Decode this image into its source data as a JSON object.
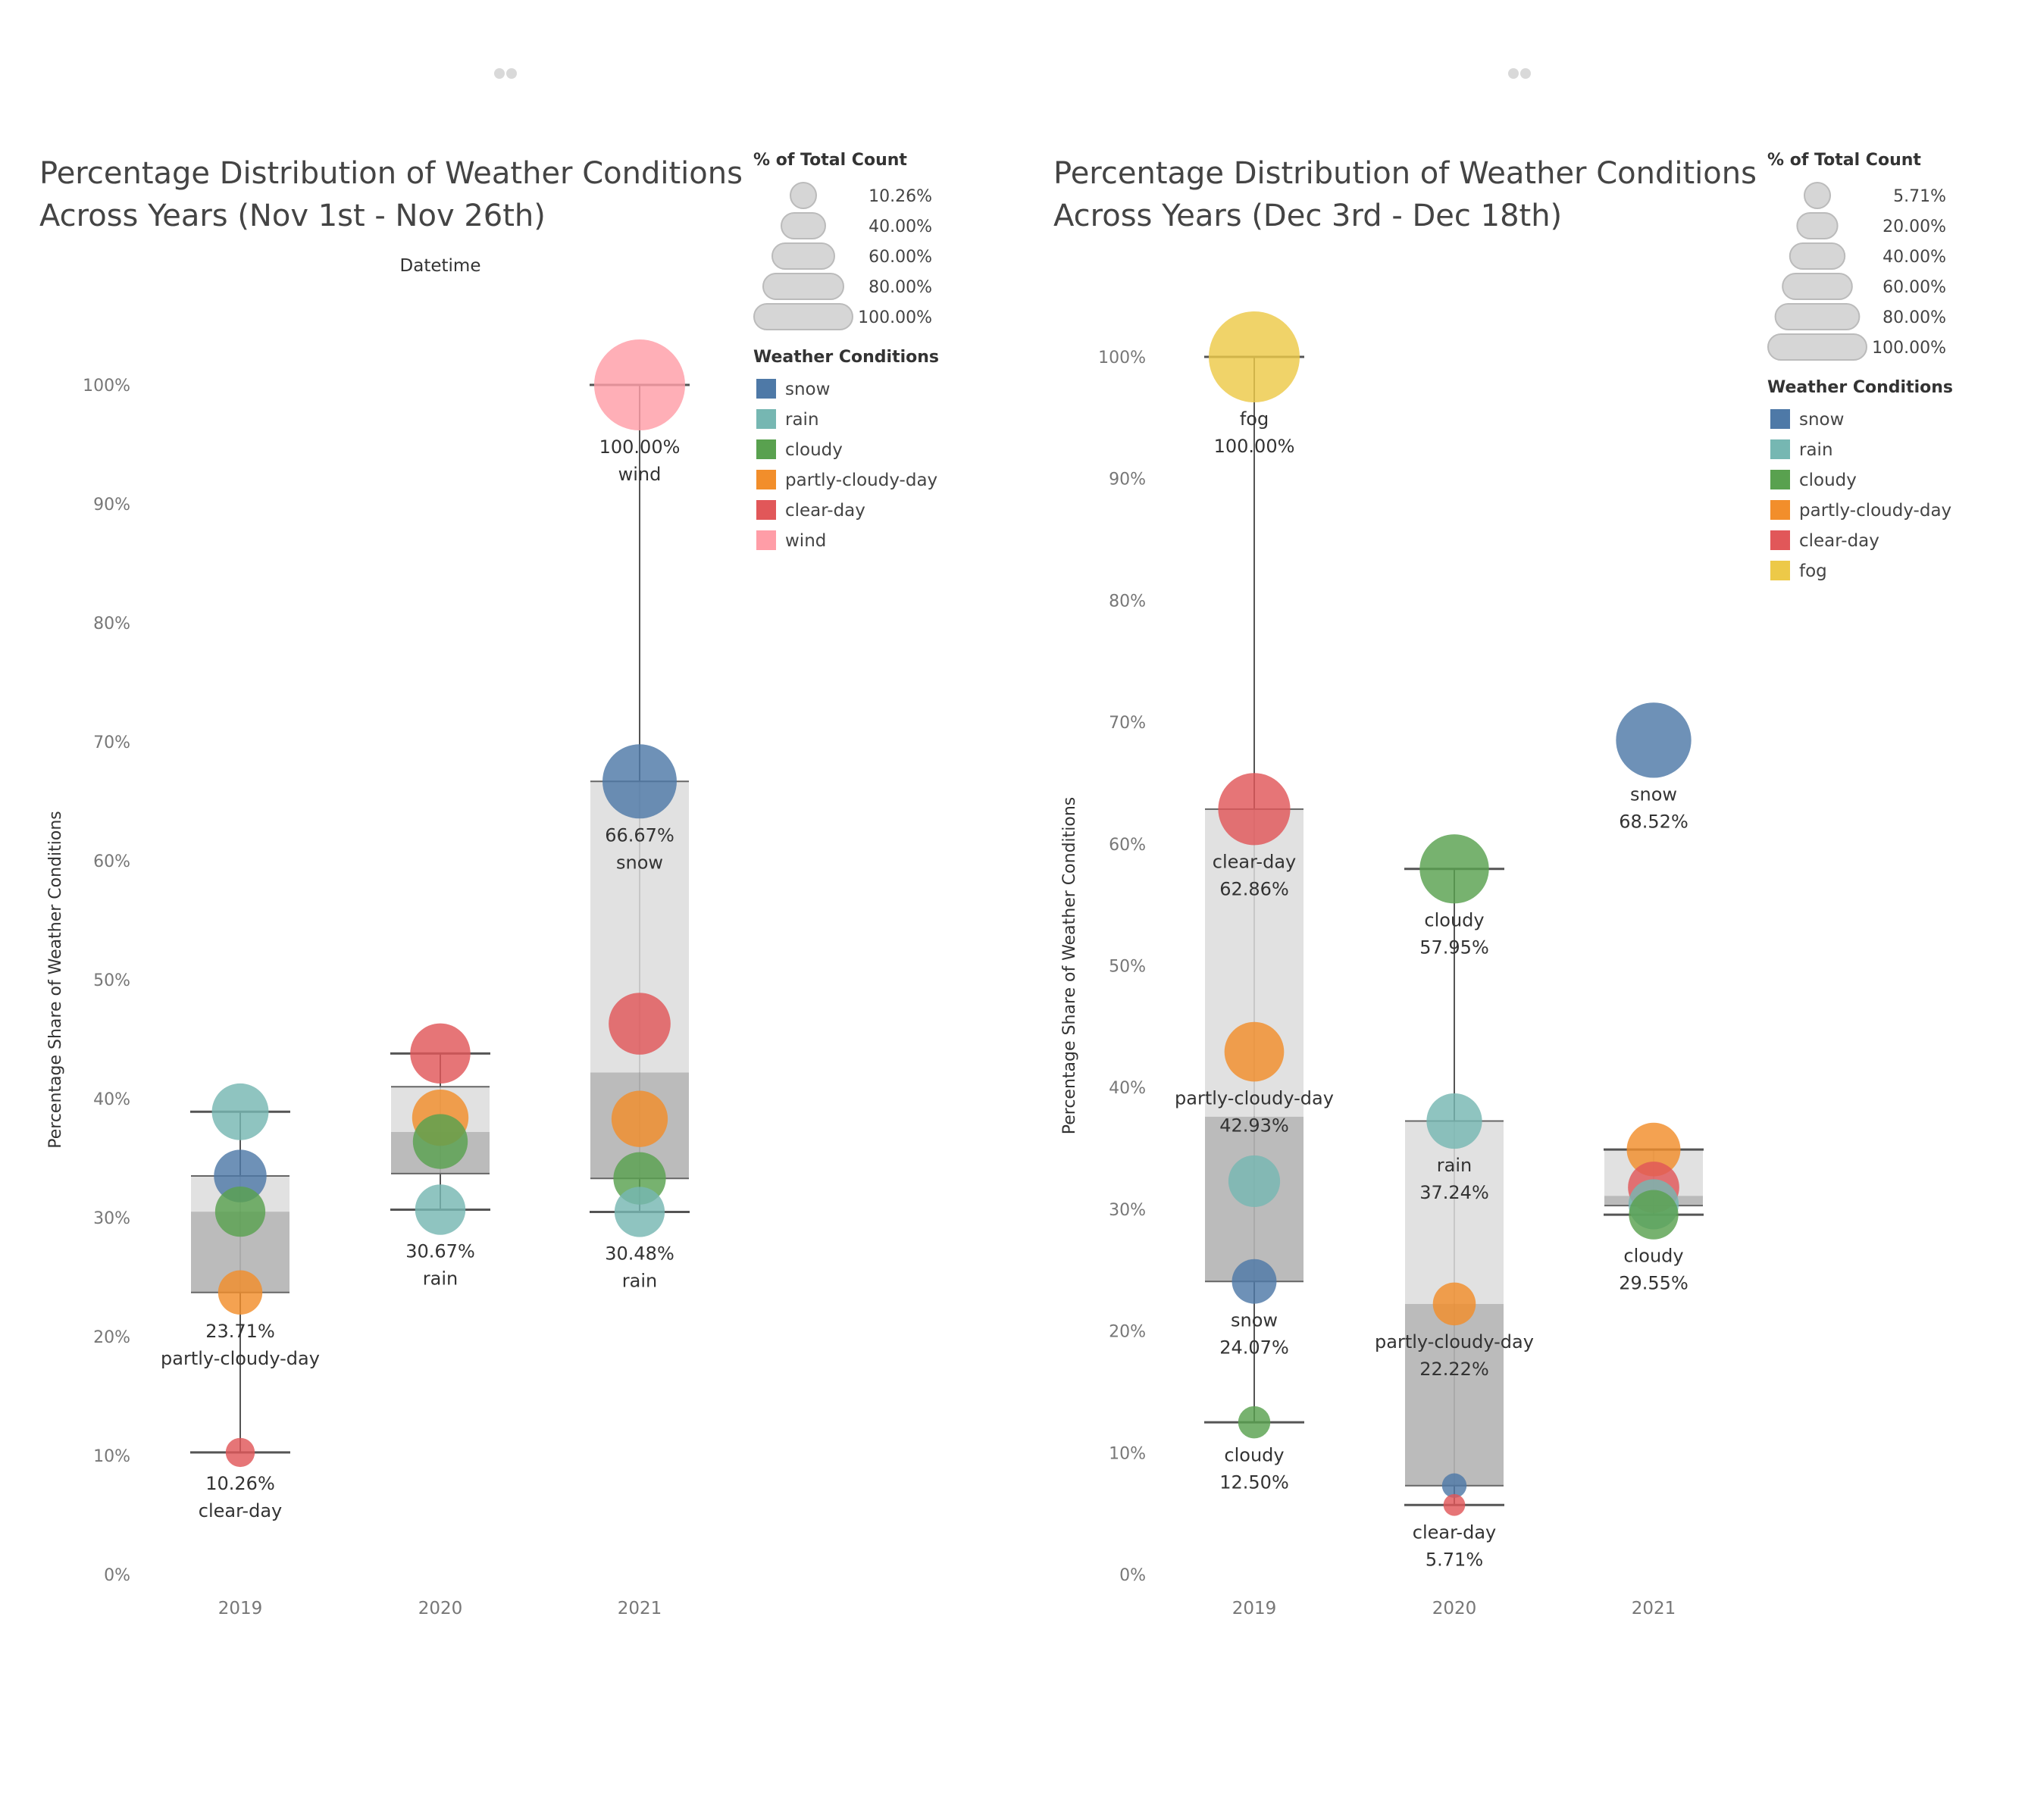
{
  "chart_data": [
    {
      "type": "scatter",
      "subtype": "box-plot with sized bubbles",
      "title_lines": [
        "Percentage Distribution of Weather Conditions",
        "Across Years (Nov 1st - Nov 26th)"
      ],
      "column_header": "Datetime",
      "ylabel": "Percentage Share of Weather Conditions",
      "ylim": [
        0,
        100
      ],
      "yticks": [
        "0%",
        "10%",
        "20%",
        "30%",
        "40%",
        "50%",
        "60%",
        "70%",
        "80%",
        "90%",
        "100%"
      ],
      "categories": [
        "2019",
        "2020",
        "2021"
      ],
      "size_legend": {
        "title": "% of Total Count",
        "entries": [
          {
            "label": "10.26%",
            "value": 10.26
          },
          {
            "label": "40.00%",
            "value": 40
          },
          {
            "label": "60.00%",
            "value": 60
          },
          {
            "label": "80.00%",
            "value": 80
          },
          {
            "label": "100.00%",
            "value": 100
          }
        ]
      },
      "color_legend": {
        "title": "Weather Conditions",
        "entries": [
          {
            "label": "snow",
            "color": "#4e79a7"
          },
          {
            "label": "rain",
            "color": "#76b7b2"
          },
          {
            "label": "cloudy",
            "color": "#59a14f"
          },
          {
            "label": "partly-cloudy-day",
            "color": "#f28e2b"
          },
          {
            "label": "clear-day",
            "color": "#e15759"
          },
          {
            "label": "wind",
            "color": "#ff9da7"
          }
        ]
      },
      "boxes": [
        {
          "year": "2019",
          "min": 10.26,
          "q1": 23.71,
          "median": 30.5,
          "q3": 33.5,
          "max": 38.9
        },
        {
          "year": "2020",
          "min": 30.67,
          "q1": 33.7,
          "median": 37.2,
          "q3": 41.0,
          "max": 43.8
        },
        {
          "year": "2021",
          "min": 30.48,
          "q1": 33.3,
          "median": 42.2,
          "q3": 66.67,
          "max": 100
        }
      ],
      "series": [
        {
          "year": "2019",
          "condition": "rain",
          "value": 38.9
        },
        {
          "year": "2019",
          "condition": "snow",
          "value": 33.5
        },
        {
          "year": "2019",
          "condition": "cloudy",
          "value": 30.5
        },
        {
          "year": "2019",
          "condition": "partly-cloudy-day",
          "value": 23.71,
          "label": [
            "23.71%",
            "partly-cloudy-day"
          ]
        },
        {
          "year": "2019",
          "condition": "clear-day",
          "value": 10.26,
          "label": [
            "10.26%",
            "clear-day"
          ]
        },
        {
          "year": "2020",
          "condition": "clear-day",
          "value": 43.8
        },
        {
          "year": "2020",
          "condition": "partly-cloudy-day",
          "value": 38.4
        },
        {
          "year": "2020",
          "condition": "cloudy",
          "value": 36.4
        },
        {
          "year": "2020",
          "condition": "rain",
          "value": 30.67,
          "label": [
            "30.67%",
            "rain"
          ]
        },
        {
          "year": "2021",
          "condition": "wind",
          "value": 100,
          "label": [
            "100.00%",
            "wind"
          ]
        },
        {
          "year": "2021",
          "condition": "snow",
          "value": 66.67,
          "label": [
            "66.67%",
            "snow"
          ]
        },
        {
          "year": "2021",
          "condition": "clear-day",
          "value": 46.3
        },
        {
          "year": "2021",
          "condition": "partly-cloudy-day",
          "value": 38.3
        },
        {
          "year": "2021",
          "condition": "cloudy",
          "value": 33.3
        },
        {
          "year": "2021",
          "condition": "rain",
          "value": 30.48,
          "label": [
            "30.48%",
            "rain"
          ]
        }
      ]
    },
    {
      "type": "scatter",
      "subtype": "box-plot with sized bubbles",
      "title_lines": [
        "Percentage Distribution of Weather Conditions",
        "Across Years (Dec 3rd - Dec 18th)"
      ],
      "ylabel": "Percentage Share of Weather Conditions",
      "ylim": [
        0,
        100
      ],
      "yticks": [
        "0%",
        "10%",
        "20%",
        "30%",
        "40%",
        "50%",
        "60%",
        "70%",
        "80%",
        "90%",
        "100%"
      ],
      "categories": [
        "2019",
        "2020",
        "2021"
      ],
      "size_legend": {
        "title": "% of Total Count",
        "entries": [
          {
            "label": "5.71%",
            "value": 5.71
          },
          {
            "label": "20.00%",
            "value": 20
          },
          {
            "label": "40.00%",
            "value": 40
          },
          {
            "label": "60.00%",
            "value": 60
          },
          {
            "label": "80.00%",
            "value": 80
          },
          {
            "label": "100.00%",
            "value": 100
          }
        ]
      },
      "color_legend": {
        "title": "Weather Conditions",
        "entries": [
          {
            "label": "snow",
            "color": "#4e79a7"
          },
          {
            "label": "rain",
            "color": "#76b7b2"
          },
          {
            "label": "cloudy",
            "color": "#59a14f"
          },
          {
            "label": "partly-cloudy-day",
            "color": "#f28e2b"
          },
          {
            "label": "clear-day",
            "color": "#e15759"
          },
          {
            "label": "fog",
            "color": "#edc948"
          }
        ]
      },
      "boxes": [
        {
          "year": "2019",
          "min": 12.5,
          "q1": 24.07,
          "median": 37.6,
          "q3": 62.86,
          "max": 100
        },
        {
          "year": "2020",
          "min": 5.71,
          "q1": 7.3,
          "median": 22.22,
          "q3": 37.24,
          "max": 57.95
        },
        {
          "year": "2021",
          "min": 29.55,
          "q1": 30.3,
          "median": 31.1,
          "q3": 34.9,
          "max": 34.9
        }
      ],
      "series": [
        {
          "year": "2019",
          "condition": "fog",
          "value": 100,
          "label": [
            "fog",
            "100.00%"
          ]
        },
        {
          "year": "2019",
          "condition": "clear-day",
          "value": 62.86,
          "label": [
            "clear-day",
            "62.86%"
          ]
        },
        {
          "year": "2019",
          "condition": "partly-cloudy-day",
          "value": 42.93,
          "label": [
            "partly-cloudy-day",
            "42.93%"
          ]
        },
        {
          "year": "2019",
          "condition": "rain",
          "value": 32.3
        },
        {
          "year": "2019",
          "condition": "snow",
          "value": 24.07,
          "label": [
            "snow",
            "24.07%"
          ]
        },
        {
          "year": "2019",
          "condition": "cloudy",
          "value": 12.5,
          "label": [
            "cloudy",
            "12.50%"
          ]
        },
        {
          "year": "2020",
          "condition": "cloudy",
          "value": 57.95,
          "label": [
            "cloudy",
            "57.95%"
          ]
        },
        {
          "year": "2020",
          "condition": "rain",
          "value": 37.24,
          "label": [
            "rain",
            "37.24%"
          ]
        },
        {
          "year": "2020",
          "condition": "partly-cloudy-day",
          "value": 22.22,
          "label": [
            "partly-cloudy-day",
            "22.22%"
          ]
        },
        {
          "year": "2020",
          "condition": "snow",
          "value": 7.3
        },
        {
          "year": "2020",
          "condition": "clear-day",
          "value": 5.71,
          "label": [
            "clear-day",
            "5.71%"
          ]
        },
        {
          "year": "2021",
          "condition": "snow",
          "value": 68.52,
          "label": [
            "snow",
            "68.52%"
          ]
        },
        {
          "year": "2021",
          "condition": "partly-cloudy-day",
          "value": 34.9
        },
        {
          "year": "2021",
          "condition": "clear-day",
          "value": 31.8
        },
        {
          "year": "2021",
          "condition": "rain",
          "value": 30.4
        },
        {
          "year": "2021",
          "condition": "cloudy",
          "value": 29.55,
          "label": [
            "cloudy",
            "29.55%"
          ]
        }
      ]
    }
  ]
}
